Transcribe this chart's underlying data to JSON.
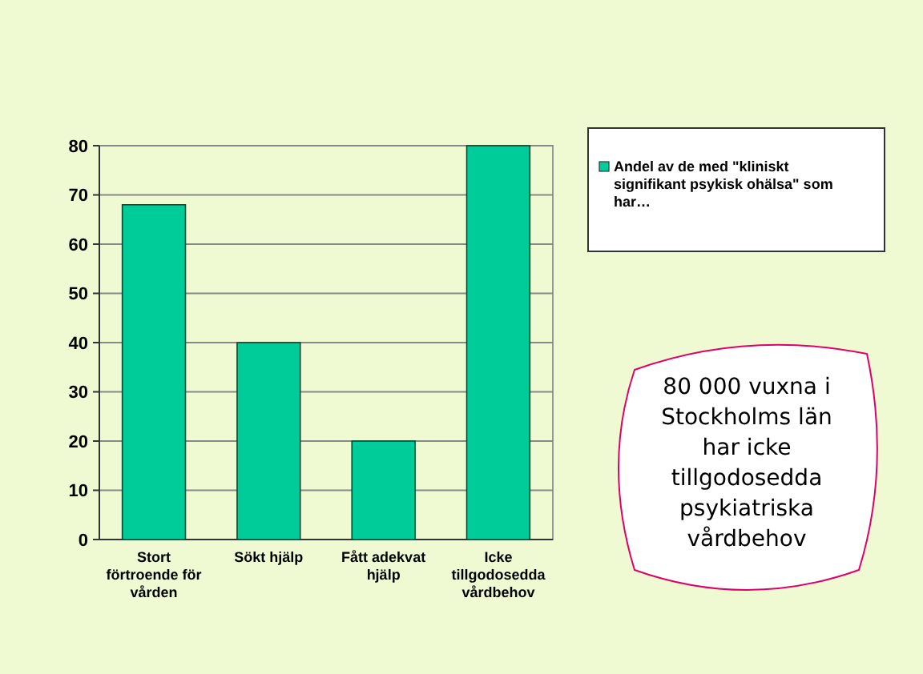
{
  "chart_data": {
    "type": "bar",
    "categories": [
      "Stort förtroende för vården",
      "Sökt hjälp",
      "Fått adekvat hjälp",
      "Icke tillgodosedda vårdbehov"
    ],
    "series": [
      {
        "name": "Andel av de med \"kliniskt signifikant psykisk ohälsa\" som har…",
        "color": "#00cc99",
        "values": [
          68,
          40,
          20,
          80
        ]
      }
    ],
    "ylim": [
      0,
      80
    ],
    "yticks": [
      0,
      10,
      20,
      30,
      40,
      50,
      60,
      70,
      80
    ],
    "grid": "y",
    "legend": "top right",
    "annotations": [
      "80 000 vuxna i Stockholms län har icke tillgodosedda psykiatriska vårdbehov"
    ]
  }
}
